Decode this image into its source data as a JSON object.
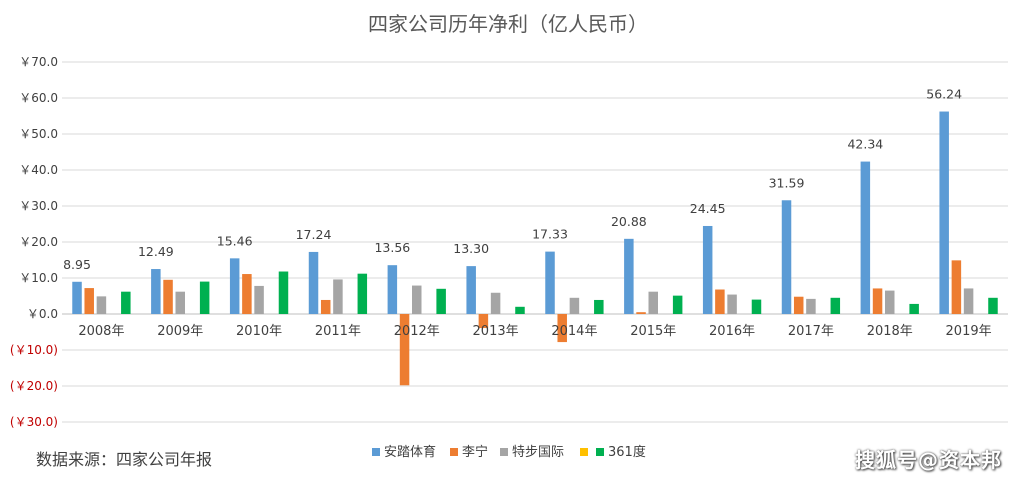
{
  "chart_data": {
    "type": "bar",
    "title": "四家公司历年净利（亿人民币）",
    "categories": [
      "2008年",
      "2009年",
      "2010年",
      "2011年",
      "2012年",
      "2013年",
      "2014年",
      "2015年",
      "2016年",
      "2017年",
      "2018年",
      "2019年"
    ],
    "series": [
      {
        "name": "安踏体育",
        "color": "#5b9bd5",
        "values": [
          8.95,
          12.49,
          15.46,
          17.24,
          13.56,
          13.3,
          17.33,
          20.88,
          24.45,
          31.59,
          42.34,
          56.24
        ]
      },
      {
        "name": "李宁",
        "color": "#ed7d31",
        "values": [
          7.2,
          9.5,
          11.1,
          3.9,
          -19.8,
          -3.9,
          -7.8,
          0.5,
          6.8,
          4.8,
          7.1,
          14.9
        ]
      },
      {
        "name": "特步国际",
        "color": "#a5a5a5",
        "values": [
          4.9,
          6.2,
          7.8,
          9.6,
          7.9,
          5.9,
          4.5,
          6.2,
          5.4,
          4.2,
          6.5,
          7.1
        ]
      },
      {
        "name": "",
        "color": "#ffc000",
        "values": [
          0,
          0,
          0,
          0,
          0,
          0,
          0,
          0,
          0,
          0,
          0,
          0
        ]
      },
      {
        "name": "361度",
        "color": "#00b050",
        "values": [
          6.2,
          9.0,
          11.8,
          11.2,
          7.0,
          2.0,
          3.9,
          5.1,
          4.0,
          4.5,
          2.8,
          4.5
        ]
      }
    ],
    "data_labels": [
      "8.95",
      "12.49",
      "15.46",
      "17.24",
      "13.56",
      "13.30",
      "17.33",
      "20.88",
      "24.45",
      "31.59",
      "42.34",
      "56.24"
    ],
    "y_ticks": [
      70,
      60,
      50,
      40,
      30,
      20,
      10,
      0,
      -10,
      -20,
      -30
    ],
    "y_tick_labels": [
      "￥70.0",
      "￥60.0",
      "￥50.0",
      "￥40.0",
      "￥30.0",
      "￥20.0",
      "￥10.0",
      "￥0.0",
      "(￥10.0)",
      "(￥20.0)",
      "(￥30.0)"
    ],
    "ylim": [
      -30,
      70
    ],
    "grid": true,
    "legend_position": "bottom",
    "xlabel": "",
    "ylabel": ""
  },
  "source_note": "数据来源：四家公司年报",
  "watermark": "搜狐号@资本邦"
}
